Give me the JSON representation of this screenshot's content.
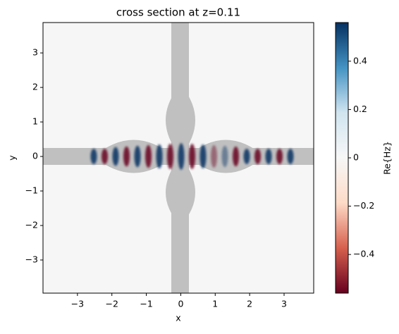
{
  "chart_data": {
    "type": "field",
    "title": "cross section at z=0.11",
    "x_label": "x",
    "y_label": "y",
    "xlim": [
      -4.0,
      3.86
    ],
    "ylim": [
      -3.96,
      3.88
    ],
    "xticks": [
      {
        "value": -3,
        "label": "−3"
      },
      {
        "value": -2,
        "label": "−2"
      },
      {
        "value": -1,
        "label": "−1"
      },
      0,
      1,
      2,
      3
    ],
    "yticks": [
      {
        "value": -3,
        "label": "−3"
      },
      {
        "value": -2,
        "label": "−2"
      },
      {
        "value": -1,
        "label": "−1"
      },
      0,
      1,
      2,
      3
    ],
    "colorbar": {
      "label": "Re{Hz}",
      "lim": [
        -0.56,
        0.56
      ],
      "ticks": [
        {
          "value": -0.4,
          "label": "−0.4"
        },
        {
          "value": -0.2,
          "label": "−0.2"
        },
        0.0,
        0.2,
        0.4
      ],
      "colors": [
        "#67001f",
        "#d6604d",
        "#fddbc7",
        "#f7f7f7",
        "#d1e5f0",
        "#4393c3",
        "#053061"
      ]
    }
  }
}
